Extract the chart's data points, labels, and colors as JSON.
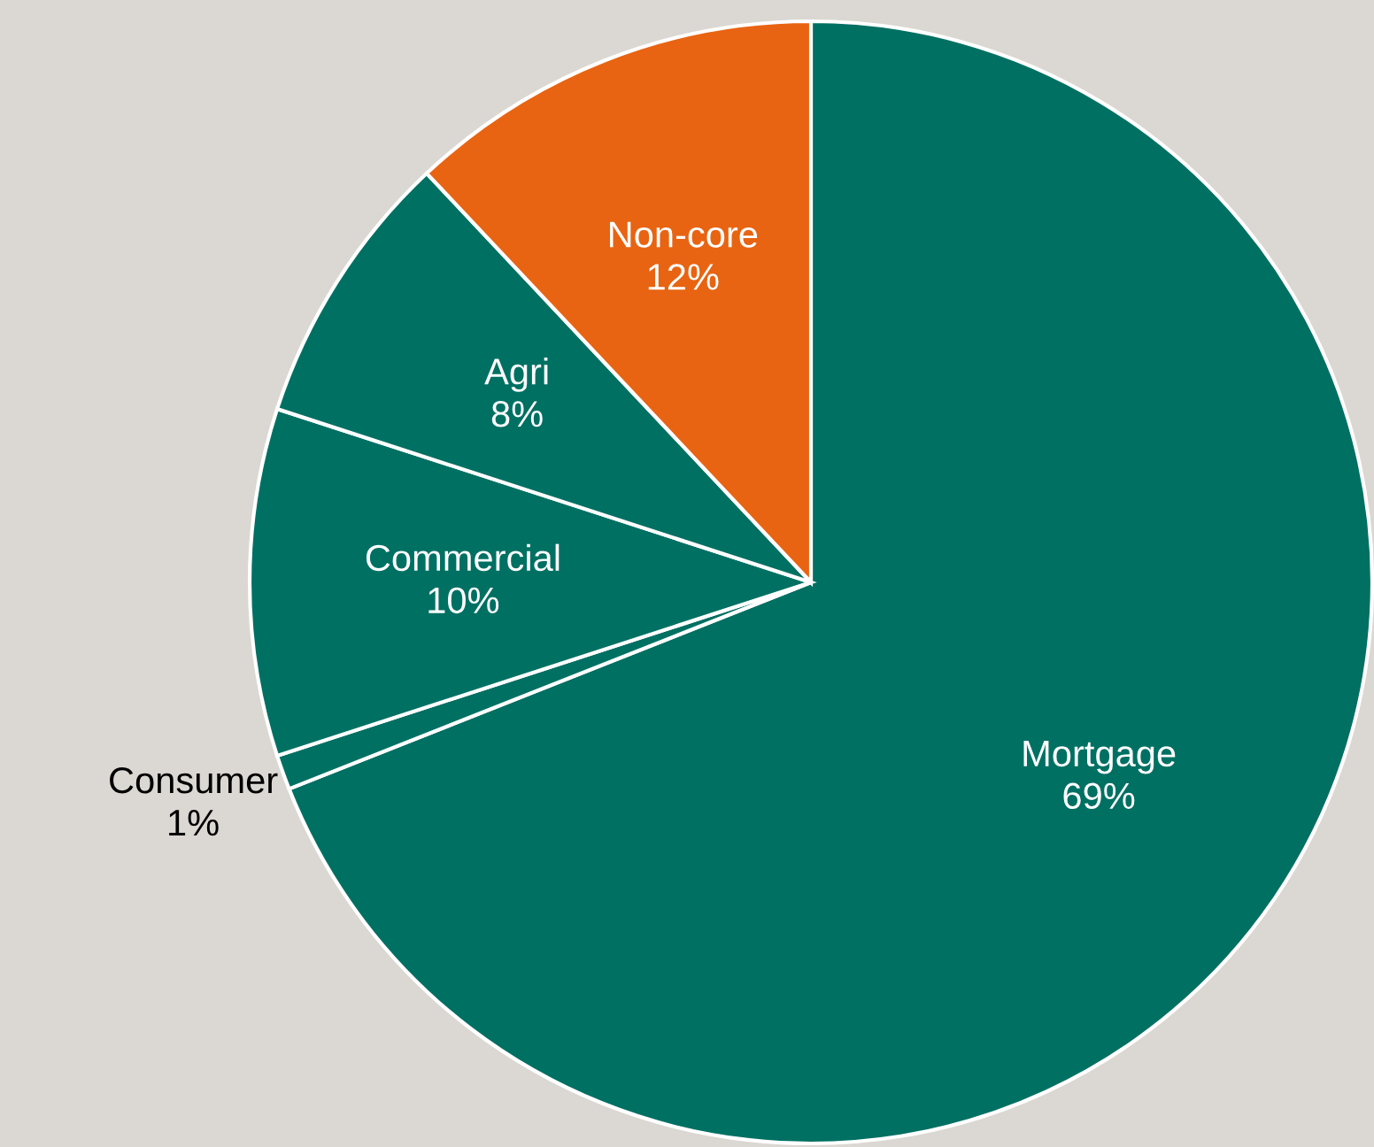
{
  "chart_data": {
    "type": "pie",
    "categories": [
      "Mortgage",
      "Consumer",
      "Commercial",
      "Agri",
      "Non-core"
    ],
    "values": [
      69,
      1,
      10,
      8,
      12
    ],
    "colors": [
      "#007063",
      "#007063",
      "#007063",
      "#007063",
      "#e86412"
    ],
    "value_labels": [
      "69%",
      "1%",
      "10%",
      "8%",
      "12%"
    ]
  }
}
